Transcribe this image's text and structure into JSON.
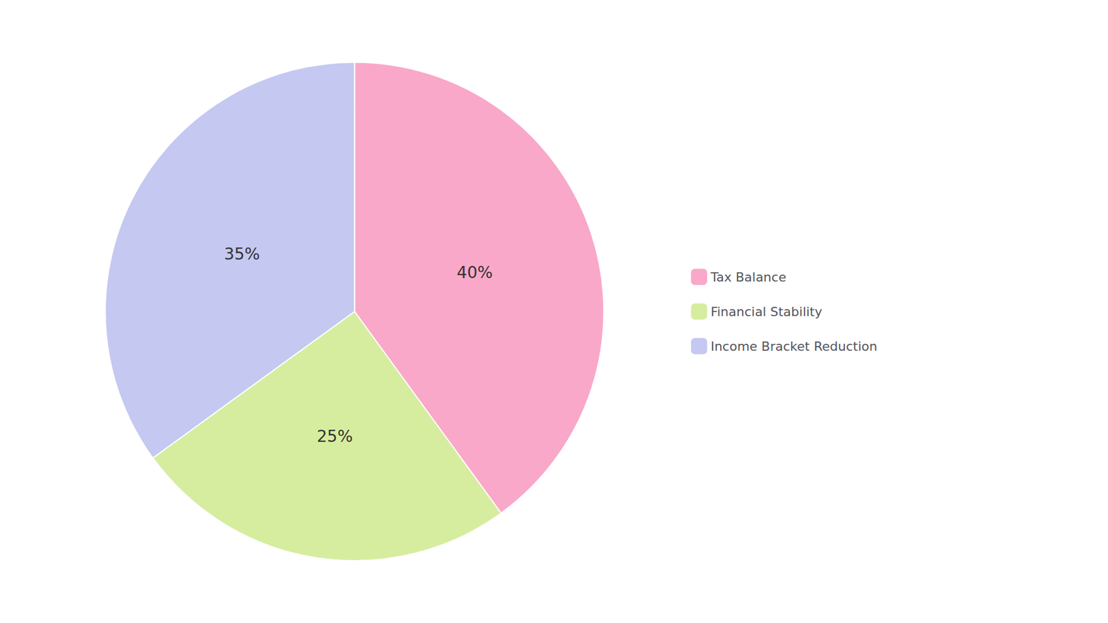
{
  "chart_data": {
    "type": "pie",
    "categories": [
      "Tax Balance",
      "Financial Stability",
      "Income Bracket Reduction"
    ],
    "values": [
      40,
      25,
      35
    ],
    "value_labels": [
      "40%",
      "25%",
      "35%"
    ],
    "colors": [
      "#F9A8C9",
      "#D6EDA0",
      "#C5C8F0"
    ],
    "data_labels": true,
    "legend": "right"
  }
}
